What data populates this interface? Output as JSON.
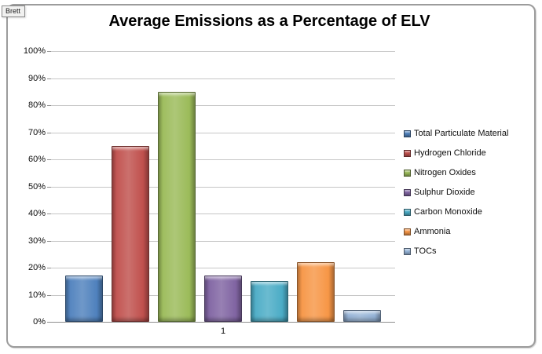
{
  "annotation": {
    "label": "Brett"
  },
  "chart_data": {
    "type": "bar",
    "title": "Average Emissions as a Percentage of ELV",
    "categories": [
      "1"
    ],
    "series": [
      {
        "name": "Total Particulate Material",
        "values": [
          17
        ],
        "color": "#4F81BD"
      },
      {
        "name": "Hydrogen Chloride",
        "values": [
          65
        ],
        "color": "#C0504D"
      },
      {
        "name": "Nitrogen Oxides",
        "values": [
          85
        ],
        "color": "#9BBB59"
      },
      {
        "name": "Sulphur Dioxide",
        "values": [
          17
        ],
        "color": "#8064A2"
      },
      {
        "name": "Carbon Monoxide",
        "values": [
          15
        ],
        "color": "#4BACC6"
      },
      {
        "name": "Ammonia",
        "values": [
          22
        ],
        "color": "#F79646"
      },
      {
        "name": "TOCs",
        "values": [
          4.5
        ],
        "color": "#95B3D7"
      }
    ],
    "ytick_labels": [
      "100%",
      "90%",
      "80%",
      "70%",
      "60%",
      "50%",
      "40%",
      "30%",
      "20%",
      "10%",
      "0%"
    ],
    "ylim": [
      0,
      100
    ],
    "grid": true,
    "legend_position": "right"
  }
}
